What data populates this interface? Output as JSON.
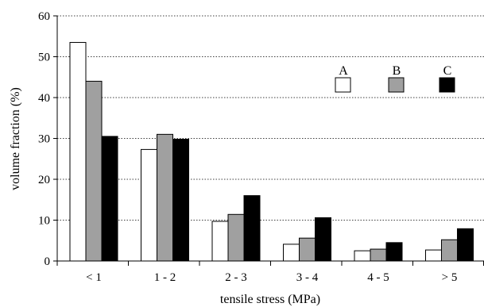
{
  "chart_data": {
    "type": "bar",
    "title": "",
    "xlabel": "tensile stress (MPa)",
    "ylabel": "volume fraction (%)",
    "ylim": [
      0,
      60
    ],
    "yticks": [
      "0",
      "10",
      "20",
      "30",
      "40",
      "50",
      "60"
    ],
    "grid": "horizontal dotted",
    "legend_placement": "top-right",
    "categories": [
      "< 1",
      "1 - 2",
      "2 - 3",
      "3 - 4",
      "4 - 5",
      "> 5"
    ],
    "series": [
      {
        "name": "A",
        "color": "#ffffff",
        "values": [
          53.5,
          27.3,
          9.7,
          4.1,
          2.5,
          2.7
        ]
      },
      {
        "name": "B",
        "color": "#a0a0a0",
        "values": [
          44.0,
          31.0,
          11.4,
          5.6,
          2.9,
          5.2
        ]
      },
      {
        "name": "C",
        "color": "#000000",
        "values": [
          30.5,
          29.8,
          16.0,
          10.6,
          4.5,
          7.9
        ]
      }
    ]
  }
}
